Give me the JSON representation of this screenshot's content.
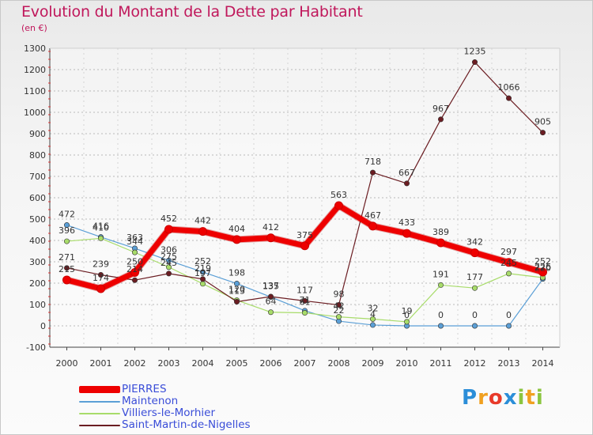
{
  "title": "Evolution du Montant de la Dette par Habitant",
  "subtitle": "(en €)",
  "logo": "Proxiti",
  "chart_data": {
    "type": "line",
    "x": [
      "2000",
      "2001",
      "2002",
      "2003",
      "2004",
      "2005",
      "2006",
      "2007",
      "2008",
      "2009",
      "2010",
      "2011",
      "2012",
      "2013",
      "2014"
    ],
    "ylim": [
      -100,
      1300
    ],
    "yticks": [
      -100,
      0,
      100,
      200,
      300,
      400,
      500,
      600,
      700,
      800,
      900,
      1000,
      1100,
      1200,
      1300
    ],
    "grid": "horizontal-dashed",
    "legend_position": "bottom-left",
    "series": [
      {
        "name": "PIERRES",
        "color": "#ee0000",
        "width": 7,
        "values": [
          215,
          174,
          250,
          452,
          442,
          404,
          412,
          375,
          563,
          467,
          433,
          389,
          342,
          297,
          252
        ]
      },
      {
        "name": "Maintenon",
        "color": "#5b9fd6",
        "width": 1.2,
        "values": [
          472,
          416,
          363,
          306,
          252,
          198,
          135,
          71,
          22,
          4,
          0,
          0,
          0,
          0,
          220
        ]
      },
      {
        "name": "Villiers-le-Morhier",
        "color": "#a8dc6a",
        "width": 1.2,
        "values": [
          396,
          410,
          344,
          275,
          197,
          120,
          64,
          61,
          42,
          32,
          19,
          191,
          177,
          245,
          226
        ]
      },
      {
        "name": "Saint-Martin-de-Nigelles",
        "color": "#6b1d22",
        "width": 1.2,
        "values": [
          271,
          239,
          214,
          245,
          219,
          113,
          137,
          117,
          98,
          718,
          667,
          967,
          1235,
          1066,
          905
        ]
      }
    ],
    "data_labels": [
      [
        "215",
        "174",
        "250",
        "452",
        "442",
        "404",
        "412",
        "375",
        "563",
        "467",
        "433",
        "389",
        "342",
        "297",
        "252"
      ],
      [
        "472",
        "416",
        "363",
        "306",
        "252",
        "198",
        "135",
        "71",
        "22",
        "4",
        "0",
        "0",
        "0",
        "0",
        "220"
      ],
      [
        "396",
        "410",
        "344",
        "275",
        "197",
        "120",
        "64",
        "61",
        "42",
        "32",
        "19",
        "191",
        "177",
        "245",
        "226"
      ],
      [
        "271",
        "239",
        "214",
        "245",
        "219",
        "113",
        "137",
        "117",
        "98",
        "718",
        "667",
        "967",
        "1235",
        "1066",
        "905"
      ]
    ]
  }
}
